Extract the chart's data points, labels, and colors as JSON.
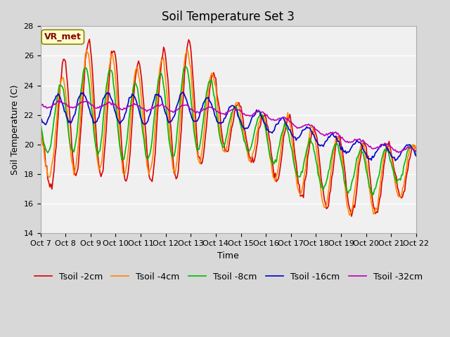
{
  "title": "Soil Temperature Set 3",
  "xlabel": "Time",
  "ylabel": "Soil Temperature (C)",
  "ylim": [
    14,
    28
  ],
  "yticks": [
    14,
    16,
    18,
    20,
    22,
    24,
    26,
    28
  ],
  "xtick_labels": [
    "Oct 7",
    "Oct 8",
    "Oct 9",
    "Oct 10",
    "Oct 11",
    "Oct 12",
    "Oct 13",
    "Oct 14",
    "Oct 15",
    "Oct 16",
    "Oct 17",
    "Oct 18",
    "Oct 19",
    "Oct 20",
    "Oct 21",
    "Oct 22"
  ],
  "fig_bg_color": "#d8d8d8",
  "plot_bg_color": "#f0f0f0",
  "annotation_text": "VR_met",
  "annotation_bg": "#ffffcc",
  "annotation_border": "#888800",
  "series_colors": [
    "#dd0000",
    "#ff8800",
    "#00bb00",
    "#0000cc",
    "#bb00bb"
  ],
  "series_labels": [
    "Tsoil -2cm",
    "Tsoil -4cm",
    "Tsoil -8cm",
    "Tsoil -16cm",
    "Tsoil -32cm"
  ],
  "title_fontsize": 12,
  "axis_label_fontsize": 9,
  "tick_fontsize": 8,
  "legend_fontsize": 9,
  "linewidth": 1.2
}
